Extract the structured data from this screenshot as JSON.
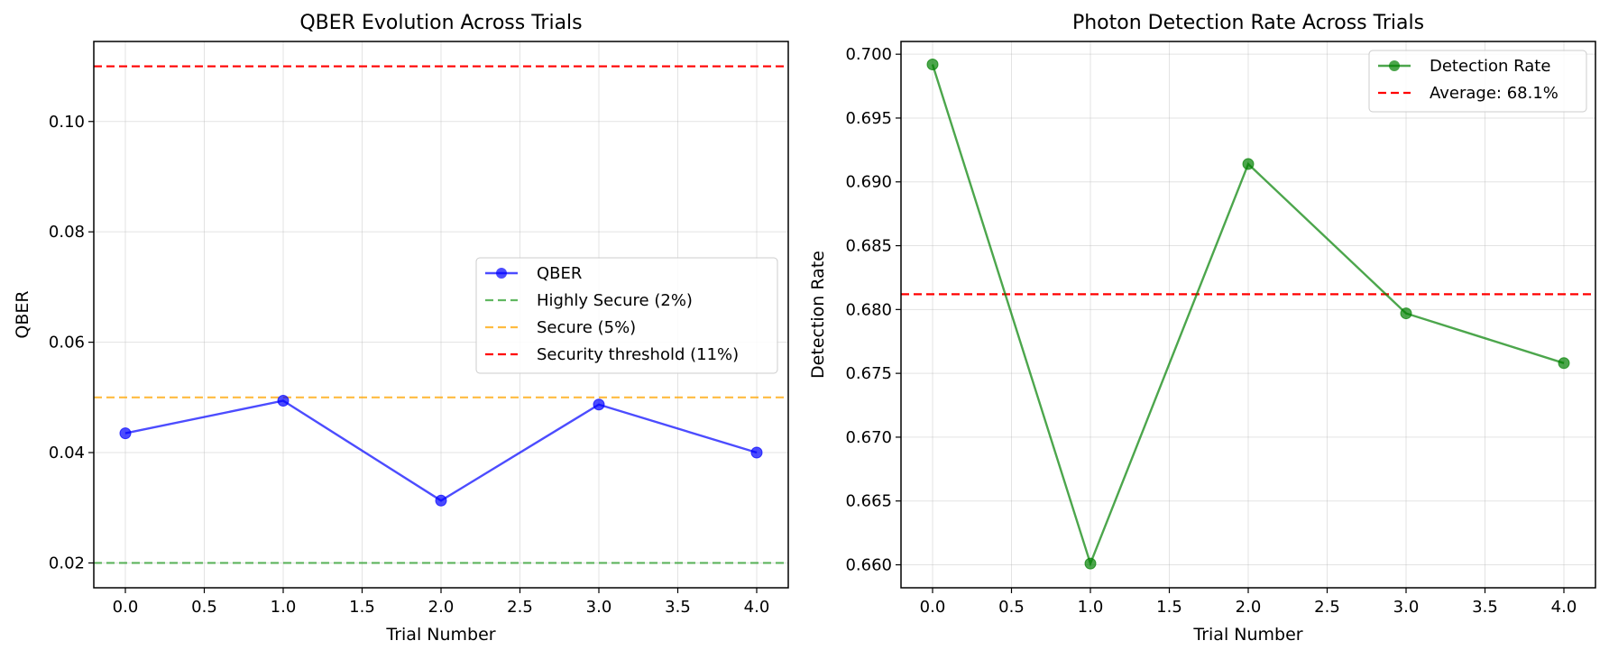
{
  "chart_data": [
    {
      "type": "line",
      "title": "QBER Evolution Across Trials",
      "xlabel": "Trial Number",
      "ylabel": "QBER",
      "xlim": [
        -0.2,
        4.2
      ],
      "ylim": [
        0.0155,
        0.1145
      ],
      "xticks": [
        "0.0",
        "0.5",
        "1.0",
        "1.5",
        "2.0",
        "2.5",
        "3.0",
        "3.5",
        "4.0"
      ],
      "yticks": [
        "0.02",
        "0.04",
        "0.06",
        "0.08",
        "0.10"
      ],
      "grid": true,
      "legend_position": "center-right",
      "x": [
        0,
        1,
        2,
        3,
        4
      ],
      "series": [
        {
          "name": "QBER",
          "values": [
            0.0435,
            0.0494,
            0.0313,
            0.0487,
            0.04
          ],
          "color": "#0000ff",
          "style": "line-marker"
        }
      ],
      "reference_lines": [
        {
          "name": "Highly Secure (2%)",
          "y": 0.02,
          "color": "#2ca02c"
        },
        {
          "name": "Secure (5%)",
          "y": 0.05,
          "color": "#ffa500"
        },
        {
          "name": "Security threshold (11%)",
          "y": 0.11,
          "color": "#ff0000"
        }
      ]
    },
    {
      "type": "line",
      "title": "Photon Detection Rate Across Trials",
      "xlabel": "Trial Number",
      "ylabel": "Detection Rate",
      "xlim": [
        -0.2,
        4.2
      ],
      "ylim": [
        0.6582,
        0.701
      ],
      "xticks": [
        "0.0",
        "0.5",
        "1.0",
        "1.5",
        "2.0",
        "2.5",
        "3.0",
        "3.5",
        "4.0"
      ],
      "yticks": [
        "0.660",
        "0.665",
        "0.670",
        "0.675",
        "0.680",
        "0.685",
        "0.690",
        "0.695",
        "0.700"
      ],
      "grid": true,
      "legend_position": "top-right",
      "x": [
        0,
        1,
        2,
        3,
        4
      ],
      "series": [
        {
          "name": "Detection Rate",
          "values": [
            0.6992,
            0.6601,
            0.6914,
            0.6797,
            0.6758
          ],
          "color": "#008000",
          "style": "line-marker"
        }
      ],
      "reference_lines": [
        {
          "name": "Average: 68.1%",
          "y": 0.6812,
          "color": "#ff0000"
        }
      ]
    }
  ]
}
